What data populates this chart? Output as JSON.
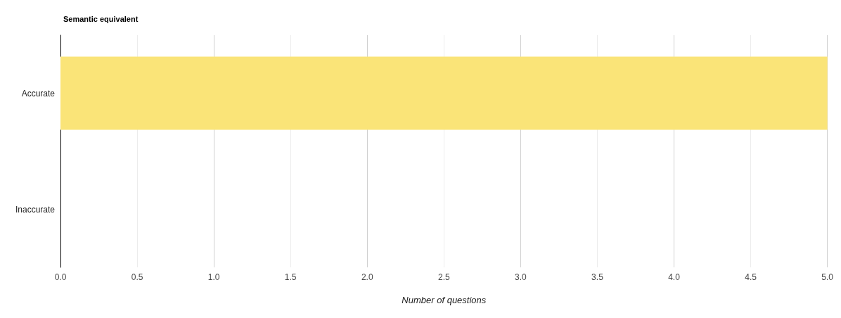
{
  "chart_data": {
    "type": "bar",
    "orientation": "horizontal",
    "title": "Semantic equivalent",
    "xlabel": "Number of questions",
    "categories": [
      "Accurate",
      "Inaccurate"
    ],
    "values": [
      5,
      0
    ],
    "color": "#fae478",
    "xlim": [
      0,
      5
    ],
    "xticks": [
      {
        "value": 0,
        "label": "0.0"
      },
      {
        "value": 0.5,
        "label": "0.5"
      },
      {
        "value": 1,
        "label": "1.0"
      },
      {
        "value": 1.5,
        "label": "1.5"
      },
      {
        "value": 2,
        "label": "2.0"
      },
      {
        "value": 2.5,
        "label": "2.5"
      },
      {
        "value": 3,
        "label": "3.0"
      },
      {
        "value": 3.5,
        "label": "3.5"
      },
      {
        "value": 4,
        "label": "4.0"
      },
      {
        "value": 4.5,
        "label": "4.5"
      },
      {
        "value": 5,
        "label": "5.0"
      }
    ],
    "grid": "x"
  }
}
